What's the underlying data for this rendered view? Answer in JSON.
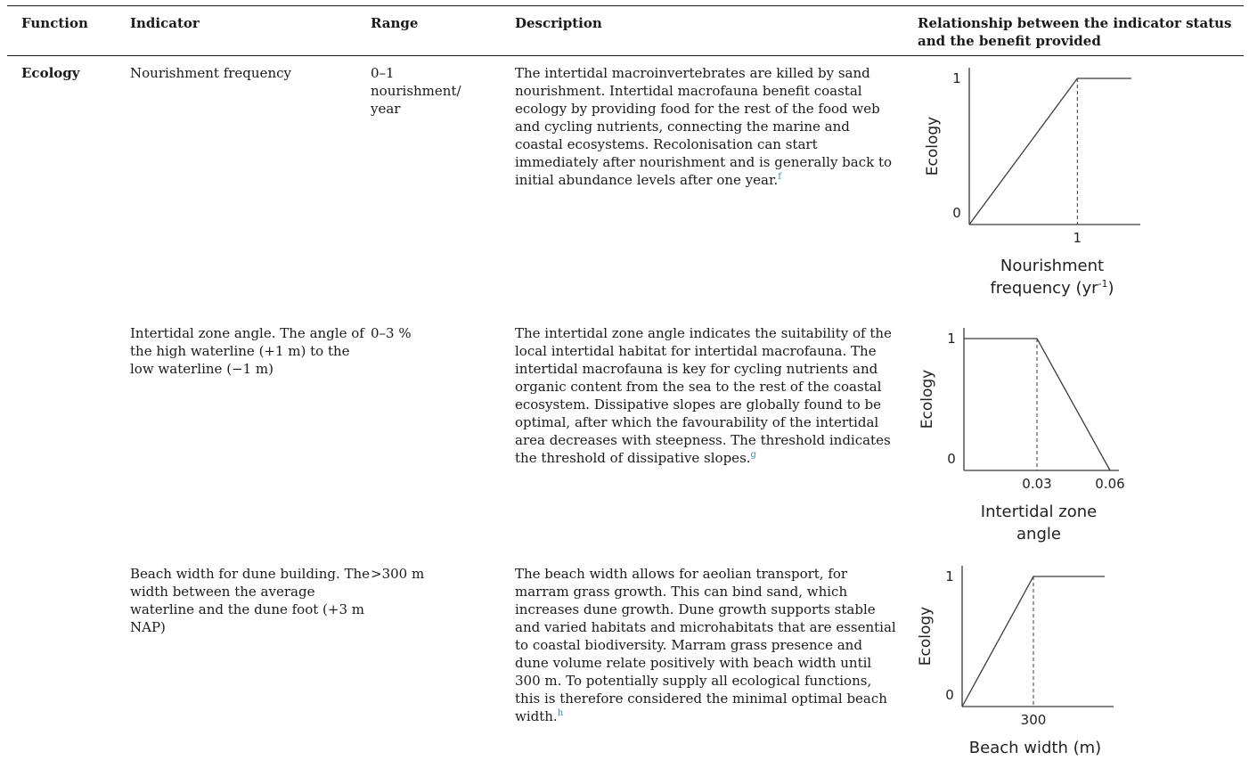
{
  "table": {
    "headers": {
      "function": "Function",
      "indicator": "Indicator",
      "range": "Range",
      "description": "Description",
      "relationship": "Relationship between the indicator status and the benefit provided"
    },
    "rows": [
      {
        "function": "Ecology",
        "indicator": "Nourishment frequency",
        "range": "0–1 nourishment/ year",
        "description": "The intertidal macroinvertebrates are killed by sand nourishment. Intertidal macrofauna benefit coastal ecology by providing food for the rest of the food web and cycling nutrients, connecting the marine and coastal ecosystems. Recolonisation can start immediately after nourishment and is generally back to initial abundance levels after one year.",
        "ref": "f"
      },
      {
        "function": "",
        "indicator": "Intertidal zone angle. The angle of the high waterline (+1 m) to the low waterline (−1 m)",
        "range": "0–3 %",
        "description": "The intertidal zone angle indicates the suitability of the local intertidal habitat for intertidal macrofauna. The intertidal macrofauna is key for cycling nutrients and organic content from the sea to the rest of the coastal ecosystem. Dissipative slopes are globally found to be optimal, after which the favourability of the intertidal area decreases with steepness. The threshold indicates the threshold of dissipative slopes.",
        "ref": "g"
      },
      {
        "function": "",
        "indicator": "Beach width for dune building. The width between the average waterline and the dune foot (+3 m NAP)",
        "range": ">300 m",
        "description": "The beach width allows for aeolian transport, for marram grass growth. This can bind sand, which increases dune growth. Dune growth supports stable and varied habitats and microhabitats that are essential to coastal biodiversity. Marram grass presence and dune volume relate positively with beach width until 300 m. To potentially supply all ecological functions, this is therefore considered the minimal optimal beach width.",
        "ref": "h"
      }
    ]
  },
  "chart_data": [
    {
      "type": "line",
      "ylabel": "Ecology",
      "xlabel_lines": [
        "Nourishment",
        "frequency (yr"
      ],
      "xlabel_sup": "-1",
      "xlabel_close": ")",
      "x_ticks": [
        "1"
      ],
      "y_ticks": [
        "0",
        "1"
      ],
      "x": [
        0,
        1,
        1.5
      ],
      "y": [
        0,
        1,
        1
      ],
      "xlim": [
        0,
        1.5
      ],
      "ylim": [
        0,
        1
      ],
      "threshold_x": 1
    },
    {
      "type": "line",
      "ylabel": "Ecology",
      "xlabel_lines": [
        "Intertidal zone",
        "angle"
      ],
      "x_ticks": [
        "0.03",
        "0.06"
      ],
      "y_ticks": [
        "0",
        "1"
      ],
      "x": [
        0,
        0.03,
        0.06
      ],
      "y": [
        1,
        1,
        0
      ],
      "xlim": [
        0,
        0.06
      ],
      "ylim": [
        0,
        1
      ],
      "threshold_x": 0.03
    },
    {
      "type": "line",
      "ylabel": "Ecology",
      "xlabel_lines": [
        "Beach width (m)"
      ],
      "x_ticks": [
        "300"
      ],
      "y_ticks": [
        "0",
        "1"
      ],
      "x": [
        0,
        300,
        600
      ],
      "y": [
        0,
        1,
        1
      ],
      "xlim": [
        0,
        600
      ],
      "ylim": [
        0,
        1
      ],
      "threshold_x": 300
    }
  ]
}
